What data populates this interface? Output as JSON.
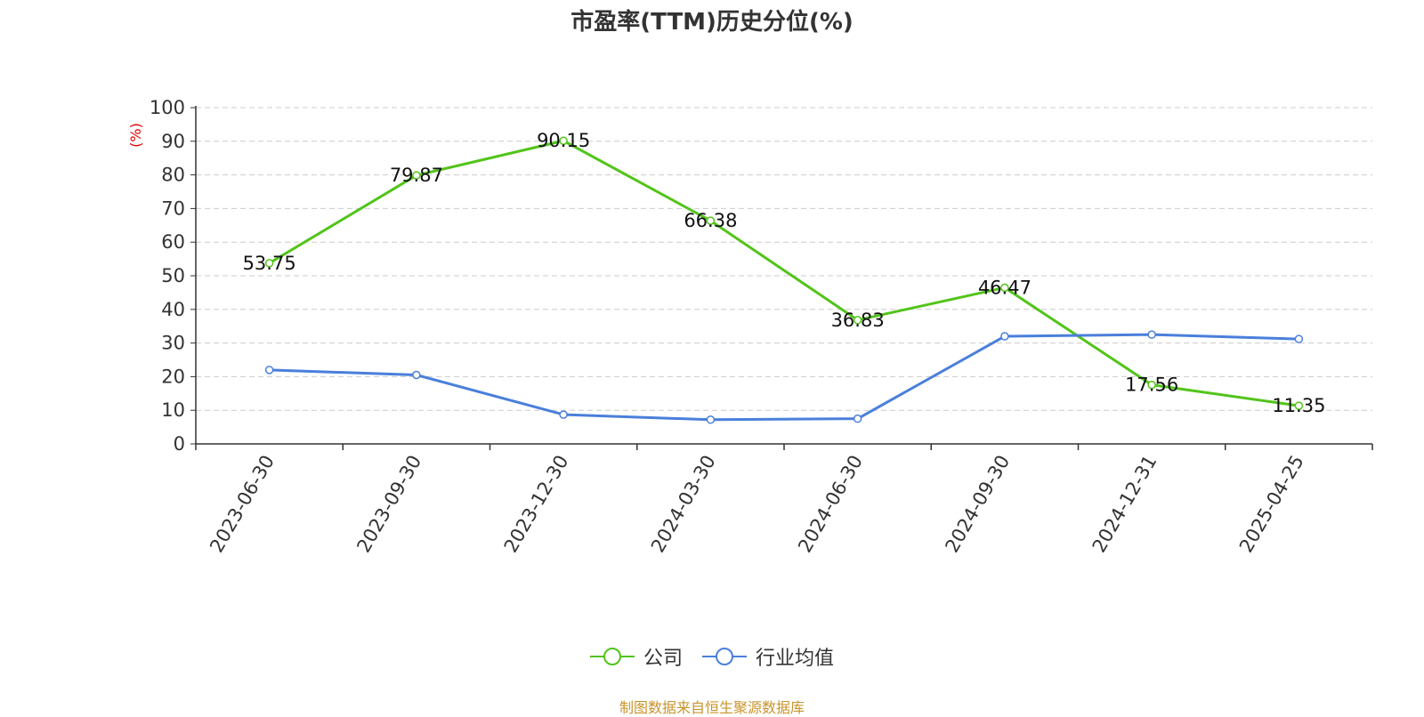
{
  "chart_data": {
    "type": "line",
    "title": "市盈率(TTM)历史分位(%)",
    "ylabel": "(%)",
    "ylim": [
      0,
      100
    ],
    "yticks": [
      0,
      10,
      20,
      30,
      40,
      50,
      60,
      70,
      80,
      90,
      100
    ],
    "categories": [
      "2023-06-30",
      "2023-09-30",
      "2023-12-30",
      "2024-03-30",
      "2024-06-30",
      "2024-09-30",
      "2024-12-31",
      "2025-04-25"
    ],
    "series": [
      {
        "name": "公司",
        "color": "#52c41a",
        "values": [
          53.75,
          79.87,
          90.15,
          66.38,
          36.83,
          46.47,
          17.56,
          11.35
        ],
        "labels": [
          "53.75",
          "79.87",
          "90.15",
          "66.38",
          "36.83",
          "46.47",
          "17.56",
          "11.35"
        ]
      },
      {
        "name": "行业均值",
        "color": "#4a7fdb",
        "values": [
          22.0,
          20.5,
          8.7,
          7.2,
          7.5,
          32.0,
          32.5,
          31.2
        ]
      }
    ],
    "grid": true,
    "legend_position": "bottom-center"
  },
  "source": "制图数据来自恒生聚源数据库"
}
